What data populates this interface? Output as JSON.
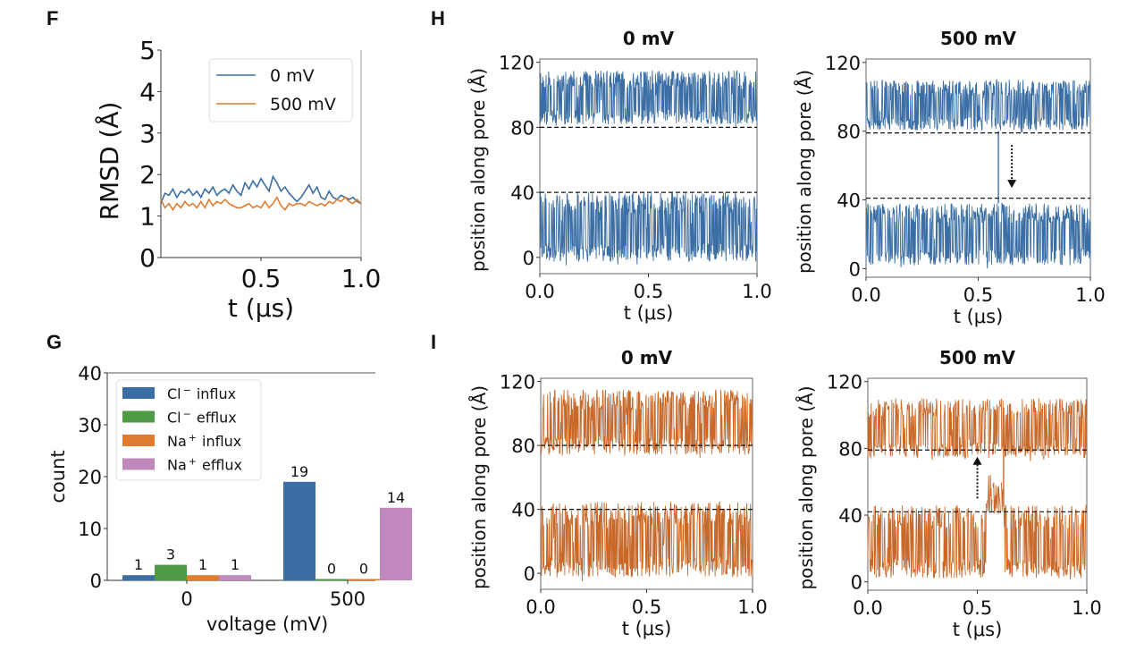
{
  "panels": {
    "F": {
      "letter": "F"
    },
    "G": {
      "letter": "G"
    },
    "H": {
      "letter": "H"
    },
    "I": {
      "letter": "I"
    }
  },
  "colors": {
    "blue": "#3a6ea5",
    "orange": "#e07b2f",
    "orange_dark": "#c8692a",
    "green": "#4e9a45",
    "pink": "#c088bc",
    "dash": "#111111",
    "axis": "#444444"
  },
  "chart_data": [
    {
      "id": "F",
      "type": "line",
      "title": "",
      "xlabel": "t (μs)",
      "ylabel": "RMSD (Å)",
      "xlim": [
        0.0,
        1.0
      ],
      "ylim": [
        0,
        5
      ],
      "xticks": [
        "0.5",
        "1.0"
      ],
      "xtick_values": [
        0.5,
        1.0
      ],
      "yticks": [
        "0",
        "1",
        "2",
        "3",
        "4",
        "5"
      ],
      "ytick_values": [
        0,
        1,
        2,
        3,
        4,
        5
      ],
      "legend": {
        "placement": "top-right",
        "entries": [
          "0 mV",
          "500 mV"
        ]
      },
      "series": [
        {
          "name": "0 mV",
          "color": "#3a6ea5",
          "x": [
            0.0,
            0.02,
            0.04,
            0.06,
            0.08,
            0.1,
            0.12,
            0.14,
            0.16,
            0.18,
            0.2,
            0.22,
            0.24,
            0.26,
            0.28,
            0.3,
            0.32,
            0.34,
            0.36,
            0.38,
            0.4,
            0.42,
            0.44,
            0.46,
            0.48,
            0.5,
            0.52,
            0.54,
            0.56,
            0.58,
            0.6,
            0.62,
            0.64,
            0.66,
            0.68,
            0.7,
            0.72,
            0.74,
            0.76,
            0.78,
            0.8,
            0.82,
            0.84,
            0.86,
            0.88,
            0.9,
            0.92,
            0.94,
            0.96,
            0.98,
            1.0
          ],
          "y": [
            1.3,
            1.55,
            1.5,
            1.65,
            1.45,
            1.6,
            1.55,
            1.65,
            1.5,
            1.6,
            1.45,
            1.65,
            1.55,
            1.7,
            1.5,
            1.6,
            1.65,
            1.55,
            1.75,
            1.6,
            1.5,
            1.8,
            1.65,
            1.85,
            1.7,
            1.9,
            1.75,
            1.6,
            1.95,
            1.8,
            1.6,
            1.7,
            1.55,
            1.45,
            1.35,
            1.45,
            1.6,
            1.75,
            1.55,
            1.7,
            1.45,
            1.4,
            1.6,
            1.45,
            1.4,
            1.5,
            1.45,
            1.4,
            1.45,
            1.35,
            1.3
          ]
        },
        {
          "name": "500 mV",
          "color": "#e07b2f",
          "x": [
            0.0,
            0.02,
            0.04,
            0.06,
            0.08,
            0.1,
            0.12,
            0.14,
            0.16,
            0.18,
            0.2,
            0.22,
            0.24,
            0.26,
            0.28,
            0.3,
            0.32,
            0.34,
            0.36,
            0.38,
            0.4,
            0.42,
            0.44,
            0.46,
            0.48,
            0.5,
            0.52,
            0.54,
            0.56,
            0.58,
            0.6,
            0.62,
            0.64,
            0.66,
            0.68,
            0.7,
            0.72,
            0.74,
            0.76,
            0.78,
            0.8,
            0.82,
            0.84,
            0.86,
            0.88,
            0.9,
            0.92,
            0.94,
            0.96,
            0.98,
            1.0
          ],
          "y": [
            1.4,
            1.2,
            1.3,
            1.15,
            1.3,
            1.2,
            1.35,
            1.25,
            1.3,
            1.2,
            1.35,
            1.2,
            1.4,
            1.25,
            1.35,
            1.3,
            1.4,
            1.3,
            1.25,
            1.2,
            1.2,
            1.25,
            1.3,
            1.2,
            1.25,
            1.2,
            1.35,
            1.2,
            1.3,
            1.45,
            1.25,
            1.15,
            1.3,
            1.25,
            1.3,
            1.3,
            1.25,
            1.35,
            1.3,
            1.25,
            1.3,
            1.25,
            1.35,
            1.3,
            1.4,
            1.35,
            1.45,
            1.35,
            1.3,
            1.4,
            1.3
          ]
        }
      ]
    },
    {
      "id": "G",
      "type": "bar",
      "title": "",
      "xlabel": "voltage (mV)",
      "ylabel": "count",
      "categories": [
        "0",
        "500"
      ],
      "ylim": [
        0,
        40
      ],
      "yticks": [
        "0",
        "10",
        "20",
        "30",
        "40"
      ],
      "ytick_values": [
        0,
        10,
        20,
        30,
        40
      ],
      "legend": {
        "placement": "top-left",
        "entries": [
          {
            "base": "Cl",
            "sup": "−",
            "rest": "influx"
          },
          {
            "base": "Cl",
            "sup": "−",
            "rest": "efflux"
          },
          {
            "base": "Na",
            "sup": "+",
            "rest": "influx"
          },
          {
            "base": "Na",
            "sup": "+",
            "rest": "efflux"
          }
        ]
      },
      "series": [
        {
          "name": "Cl− influx",
          "color": "#3a6ea5",
          "values": [
            1,
            19
          ],
          "labels": [
            "1",
            "19"
          ]
        },
        {
          "name": "Cl− efflux",
          "color": "#4e9a45",
          "values": [
            3,
            0
          ],
          "labels": [
            "3",
            "0"
          ]
        },
        {
          "name": "Na+ influx",
          "color": "#e07b2f",
          "values": [
            1,
            0
          ],
          "labels": [
            "1",
            "0"
          ]
        },
        {
          "name": "Na+ efflux",
          "color": "#c088bc",
          "values": [
            1,
            14
          ],
          "labels": [
            "1",
            "14"
          ]
        }
      ]
    },
    {
      "id": "H-0mV",
      "type": "line",
      "title": "0 mV",
      "xlabel": "t (μs)",
      "ylabel": "position along pore (Å)",
      "xlim": [
        0.0,
        1.0
      ],
      "ylim": [
        -10,
        122
      ],
      "xticks": [
        "0.0",
        "0.5",
        "1.0"
      ],
      "xtick_values": [
        0.0,
        0.5,
        1.0
      ],
      "yticks": [
        "0",
        "40",
        "80",
        "120"
      ],
      "ytick_values": [
        0,
        40,
        80,
        120
      ],
      "reference_lines": [
        80,
        40
      ],
      "series": [
        {
          "name": "upper ion",
          "color": "#3a6ea5",
          "band": [
            80,
            115
          ],
          "t_range": [
            0,
            1
          ]
        },
        {
          "name": "lower ion",
          "color": "#3a6ea5",
          "band": [
            -5,
            40
          ],
          "t_range": [
            0,
            1
          ]
        }
      ],
      "seed": 11
    },
    {
      "id": "H-500mV",
      "type": "line",
      "title": "500 mV",
      "xlabel": "t (μs)",
      "ylabel": "position along pore (Å)",
      "xlim": [
        0.0,
        1.0
      ],
      "ylim": [
        -5,
        122
      ],
      "xticks": [
        "0.0",
        "0.5",
        "1.0"
      ],
      "xtick_values": [
        0.0,
        0.5,
        1.0
      ],
      "yticks": [
        "0",
        "40",
        "80",
        "120"
      ],
      "ytick_values": [
        0,
        40,
        80,
        120
      ],
      "reference_lines": [
        79,
        41
      ],
      "annotation": {
        "type": "dotted-arrow",
        "direction": "down",
        "x": 0.65,
        "from": 72,
        "to": 47
      },
      "transition": {
        "t": 0.59,
        "from": 80,
        "to": 38
      },
      "series": [
        {
          "name": "upper ion",
          "color": "#3a6ea5",
          "band": [
            79,
            110
          ],
          "t_range": [
            0,
            1
          ]
        },
        {
          "name": "lower ion",
          "color": "#3a6ea5",
          "band": [
            0,
            38
          ],
          "t_range": [
            0,
            1
          ]
        }
      ],
      "seed": 23
    },
    {
      "id": "I-0mV",
      "type": "line",
      "title": "0 mV",
      "xlabel": "t (μs)",
      "ylabel": "position along pore (Å)",
      "xlim": [
        0.0,
        1.0
      ],
      "ylim": [
        -10,
        122
      ],
      "xticks": [
        "0.0",
        "0.5",
        "1.0"
      ],
      "xtick_values": [
        0.0,
        0.5,
        1.0
      ],
      "yticks": [
        "0",
        "40",
        "80",
        "120"
      ],
      "ytick_values": [
        0,
        40,
        80,
        120
      ],
      "reference_lines": [
        80,
        40
      ],
      "series": [
        {
          "name": "upper ion",
          "color": "#c8692a",
          "band": [
            72,
            115
          ],
          "t_range": [
            0,
            1
          ]
        },
        {
          "name": "lower ion",
          "color": "#c8692a",
          "band": [
            -5,
            45
          ],
          "t_range": [
            0,
            1
          ]
        }
      ],
      "seed": 37
    },
    {
      "id": "I-500mV",
      "type": "line",
      "title": "500 mV",
      "xlabel": "t (μs)",
      "ylabel": "position along pore (Å)",
      "xlim": [
        0.0,
        1.0
      ],
      "ylim": [
        -5,
        122
      ],
      "xticks": [
        "0.0",
        "0.5",
        "1.0"
      ],
      "xtick_values": [
        0.0,
        0.5,
        1.0
      ],
      "yticks": [
        "0",
        "40",
        "80",
        "120"
      ],
      "ytick_values": [
        0,
        40,
        80,
        120
      ],
      "reference_lines": [
        79,
        42
      ],
      "annotation": {
        "type": "dotted-arrow",
        "direction": "up",
        "x": 0.5,
        "from": 50,
        "to": 75
      },
      "transition": {
        "t": 0.62,
        "from": 45,
        "to": 82
      },
      "series": [
        {
          "name": "upper ion",
          "color": "#c8692a",
          "band": [
            72,
            110
          ],
          "t_range": [
            0,
            1
          ]
        },
        {
          "name": "lower ion",
          "color": "#c8692a",
          "band": [
            0,
            46
          ],
          "t_range": [
            0,
            1
          ]
        }
      ],
      "seed": 53
    }
  ]
}
